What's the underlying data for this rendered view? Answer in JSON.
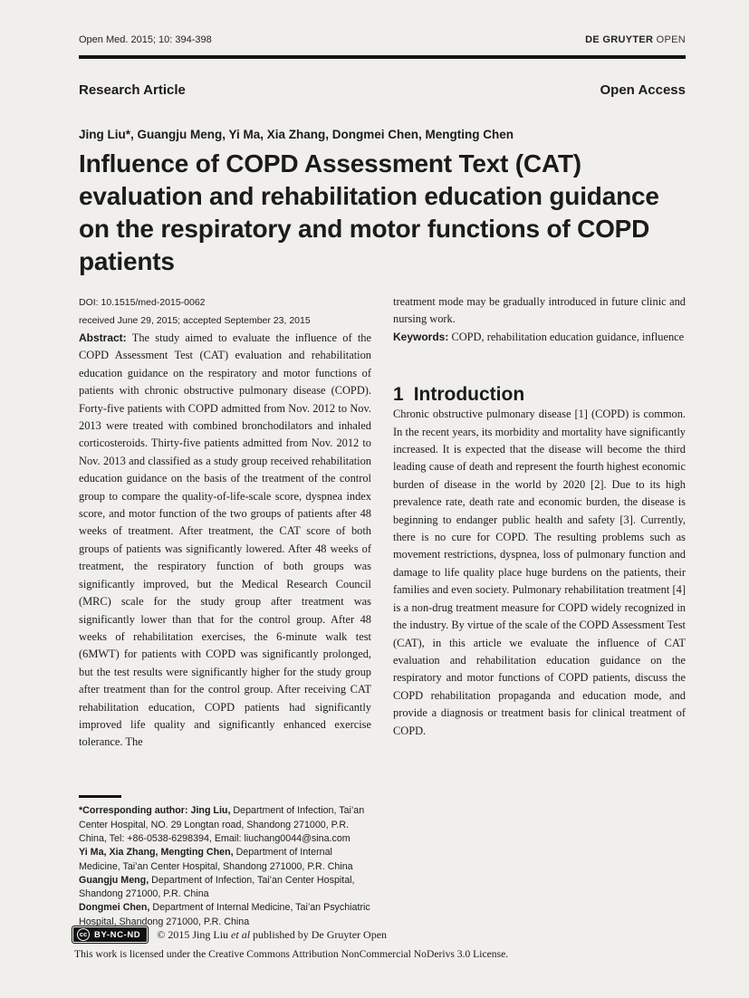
{
  "page": {
    "journal_ref": "Open Med. 2015; 10: 394-398",
    "brand_bold": "DE GRUYTER",
    "brand_light": " OPEN",
    "article_type": "Research Article",
    "access_label": "Open Access",
    "authors": "Jing Liu*, Guangju Meng, Yi Ma, Xia Zhang, Dongmei Chen, Mengting Chen",
    "title_lines": [
      "Influence of COPD Assessment Text (CAT)",
      "evaluation and rehabilitation education guidance",
      "on the respiratory and motor functions of COPD",
      "patients"
    ],
    "doi": "DOI: 10.1515/med-2015-0062",
    "received": "received June 29, 2015; accepted September 23, 2015"
  },
  "abstract": {
    "label": "Abstract:",
    "text": " The study aimed to evaluate the influence of the COPD Assessment Test (CAT) evaluation and rehabilitation education guidance on the respiratory and motor functions of patients with chronic obstructive pulmonary disease (COPD). Forty-five patients with COPD admitted from Nov. 2012 to Nov. 2013 were treated with combined bronchodilators and inhaled corticosteroids. Thirty-five patients admitted from Nov. 2012 to Nov. 2013 and classified as a study group received rehabilitation education guidance on the basis of the treatment of the control group to compare the quality-of-life-scale score, dyspnea index score, and motor function of the two groups of patients after 48 weeks of treatment. After treatment, the CAT score of both groups of patients was significantly lowered. After 48 weeks of treatment, the respiratory function of both groups was significantly improved, but the Medical Research Council (MRC) scale for the study group after treatment was significantly lower than that for the control group. After 48 weeks of rehabilitation exercises, the 6-minute walk test (6MWT) for patients with COPD was significantly prolonged, but the test results were significantly higher for the study group after treatment than for the control group. After receiving CAT rehabilitation education, COPD patients had significantly improved life quality and significantly enhanced exercise tolerance. The",
    "continuation": "treatment mode may be gradually introduced in future clinic and nursing work."
  },
  "keywords": {
    "label": "Keywords:",
    "text": " COPD, rehabilitation education guidance, influence"
  },
  "introduction": {
    "number": "1",
    "heading": "Introduction",
    "text": "Chronic obstructive pulmonary disease [1] (COPD) is common. In the recent years, its morbidity and mortality have significantly increased. It is expected that the disease will become the third leading cause of death and represent the fourth highest economic burden of disease in the world by 2020 [2]. Due to its high prevalence rate, death rate and economic burden, the disease is beginning to endanger public health and safety [3]. Currently, there is no cure for COPD. The resulting problems such as movement restrictions, dyspnea, loss of pulmonary function and damage to life quality place huge burdens on the patients, their families and even society. Pulmonary rehabilitation treatment [4] is a non-drug treatment measure for COPD widely recognized in the industry. By virtue of the scale of the COPD Assessment Test (CAT), in this article we evaluate the influence of CAT evaluation and rehabilitation education guidance on the respiratory and motor functions of COPD patients, discuss the COPD rehabilitation propaganda and education mode, and provide a diagnosis or treatment basis for clinical treatment of COPD."
  },
  "footnote": {
    "entries": [
      {
        "bold": "*Corresponding author: Jing Liu,",
        "text": " Department of Infection, Tai’an Center Hospital, NO. 29 Longtan road, Shandong 271000, P.R. China, Tel: +86-0538-6298394, Email: liuchang0044@sina.com"
      },
      {
        "bold": "Yi Ma, Xia Zhang, Mengting Chen,",
        "text": " Department of Internal Medicine, Tai’an Center Hospital, Shandong 271000, P.R. China"
      },
      {
        "bold": "Guangju Meng,",
        "text": " Department of Infection, Tai’an Center Hospital, Shandong 271000, P.R. China"
      },
      {
        "bold": "Dongmei Chen,",
        "text": " Department of Internal Medicine, Tai’an Psychiatric Hospital, Shandong 271000, P.R. China"
      }
    ]
  },
  "footer": {
    "cc_icon": "cc",
    "cc_label": "BY-NC-ND",
    "copyright_pre": "© 2015 Jing Liu ",
    "copyright_italic": "et al",
    "copyright_post": " published by De Gruyter Open",
    "license": "This work is licensed under the Creative Commons Attribution NonCommercial NoDerivs 3.0 License."
  },
  "colors": {
    "paper": "#f0efec",
    "ink": "#1b1b1b"
  }
}
